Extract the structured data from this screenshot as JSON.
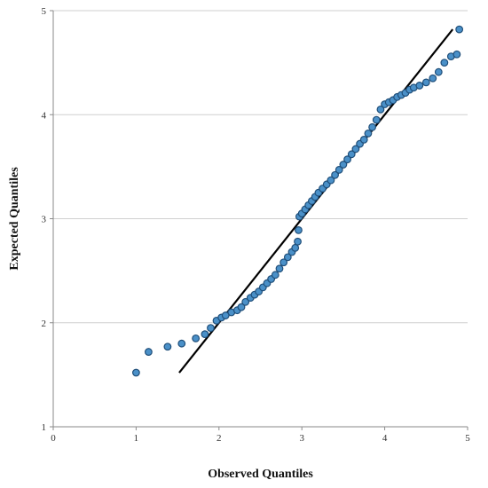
{
  "chart_data": {
    "type": "scatter",
    "title": "",
    "xlabel": "Observed Quantiles",
    "ylabel": "Expected Quantiles",
    "xlim": [
      0,
      5
    ],
    "ylim": [
      1,
      5
    ],
    "x_ticks": [
      "0",
      "1",
      "2",
      "3",
      "4",
      "5"
    ],
    "y_ticks": [
      "1",
      "2",
      "3",
      "4",
      "5"
    ],
    "grid": "horizontal",
    "legend": "none",
    "point_color": "#4a90c8",
    "point_edge_color": "#1f4e79",
    "line_color": "#000000",
    "reference_line": {
      "x": [
        1.52,
        4.82
      ],
      "y": [
        1.52,
        4.82
      ]
    },
    "points": [
      [
        1.0,
        1.52
      ],
      [
        1.15,
        1.72
      ],
      [
        1.38,
        1.77
      ],
      [
        1.55,
        1.8
      ],
      [
        1.72,
        1.85
      ],
      [
        1.83,
        1.89
      ],
      [
        1.9,
        1.95
      ],
      [
        1.97,
        2.02
      ],
      [
        2.03,
        2.05
      ],
      [
        2.08,
        2.07
      ],
      [
        2.15,
        2.1
      ],
      [
        2.22,
        2.12
      ],
      [
        2.27,
        2.15
      ],
      [
        2.32,
        2.2
      ],
      [
        2.38,
        2.24
      ],
      [
        2.43,
        2.27
      ],
      [
        2.48,
        2.3
      ],
      [
        2.53,
        2.34
      ],
      [
        2.58,
        2.38
      ],
      [
        2.63,
        2.42
      ],
      [
        2.68,
        2.46
      ],
      [
        2.73,
        2.52
      ],
      [
        2.78,
        2.58
      ],
      [
        2.83,
        2.63
      ],
      [
        2.88,
        2.68
      ],
      [
        2.92,
        2.72
      ],
      [
        2.95,
        2.78
      ],
      [
        2.96,
        2.89
      ],
      [
        2.97,
        3.02
      ],
      [
        3.0,
        3.05
      ],
      [
        3.04,
        3.09
      ],
      [
        3.08,
        3.13
      ],
      [
        3.12,
        3.17
      ],
      [
        3.16,
        3.21
      ],
      [
        3.2,
        3.25
      ],
      [
        3.25,
        3.29
      ],
      [
        3.3,
        3.33
      ],
      [
        3.35,
        3.37
      ],
      [
        3.4,
        3.42
      ],
      [
        3.45,
        3.47
      ],
      [
        3.5,
        3.52
      ],
      [
        3.55,
        3.57
      ],
      [
        3.6,
        3.62
      ],
      [
        3.65,
        3.67
      ],
      [
        3.7,
        3.72
      ],
      [
        3.75,
        3.76
      ],
      [
        3.8,
        3.82
      ],
      [
        3.85,
        3.88
      ],
      [
        3.9,
        3.95
      ],
      [
        3.95,
        4.05
      ],
      [
        4.0,
        4.1
      ],
      [
        4.05,
        4.12
      ],
      [
        4.1,
        4.14
      ],
      [
        4.15,
        4.17
      ],
      [
        4.2,
        4.19
      ],
      [
        4.25,
        4.21
      ],
      [
        4.3,
        4.24
      ],
      [
        4.35,
        4.26
      ],
      [
        4.42,
        4.28
      ],
      [
        4.5,
        4.31
      ],
      [
        4.58,
        4.35
      ],
      [
        4.65,
        4.41
      ],
      [
        4.72,
        4.5
      ],
      [
        4.8,
        4.56
      ],
      [
        4.87,
        4.58
      ],
      [
        4.9,
        4.82
      ]
    ]
  }
}
